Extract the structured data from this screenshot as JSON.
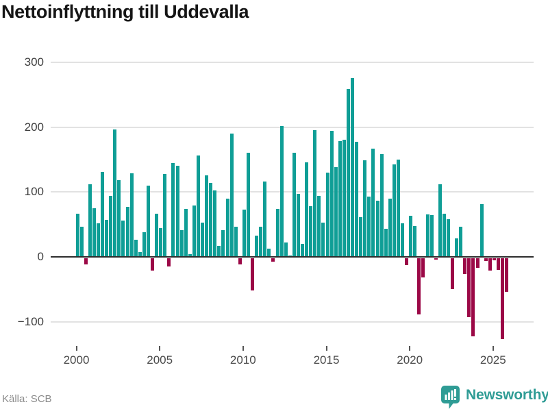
{
  "header": {
    "title": "Nettoinflyttning till Uddevalla"
  },
  "footer": {
    "source": "Källa: SCB",
    "brand": "Newsworthy"
  },
  "chart_data": {
    "type": "bar",
    "title": "Nettoinflyttning till Uddevalla",
    "xlabel": "",
    "ylabel": "",
    "frequency": "quarterly",
    "ylim": [
      -130,
      310
    ],
    "y_ticks": [
      300,
      200,
      100,
      0,
      -100
    ],
    "x_ticks": [
      2000,
      2005,
      2010,
      2015,
      2020,
      2025
    ],
    "grid": "horizontal",
    "legend": "none",
    "colors": {
      "positive": "#0f9e96",
      "negative": "#9b0846"
    },
    "values_by_year": {
      "2000": [
        66,
        45,
        -10,
        111
      ],
      "2001": [
        74,
        51,
        130,
        56
      ],
      "2002": [
        93,
        195,
        117,
        55
      ],
      "2003": [
        76,
        128,
        25,
        6
      ],
      "2004": [
        37,
        109,
        -20,
        66
      ],
      "2005": [
        43,
        127,
        -13,
        144
      ],
      "2006": [
        140,
        40,
        73,
        3
      ],
      "2007": [
        78,
        155,
        52,
        125
      ],
      "2008": [
        113,
        101,
        16,
        40
      ],
      "2009": [
        89,
        189,
        45,
        -10
      ],
      "2010": [
        72,
        160,
        -50,
        32
      ],
      "2011": [
        46,
        115,
        12,
        -6
      ],
      "2012": [
        73,
        201,
        21,
        1
      ],
      "2013": [
        160,
        96,
        19,
        145
      ],
      "2014": [
        77,
        194,
        93,
        52
      ],
      "2015": [
        129,
        193,
        137,
        177
      ],
      "2016": [
        180,
        258,
        275,
        176
      ],
      "2017": [
        60,
        148,
        92,
        166
      ],
      "2018": [
        86,
        157,
        42,
        89
      ],
      "2019": [
        142,
        149,
        51,
        -11
      ],
      "2020": [
        62,
        47,
        -87,
        -30
      ],
      "2021": [
        65,
        63,
        -3,
        111
      ],
      "2022": [
        66,
        57,
        -48,
        27
      ],
      "2023": [
        45,
        -25,
        -91,
        -121
      ],
      "2024": [
        -15,
        80,
        -5,
        -20
      ],
      "2025": [
        -4,
        -18,
        -125,
        -52
      ]
    }
  }
}
